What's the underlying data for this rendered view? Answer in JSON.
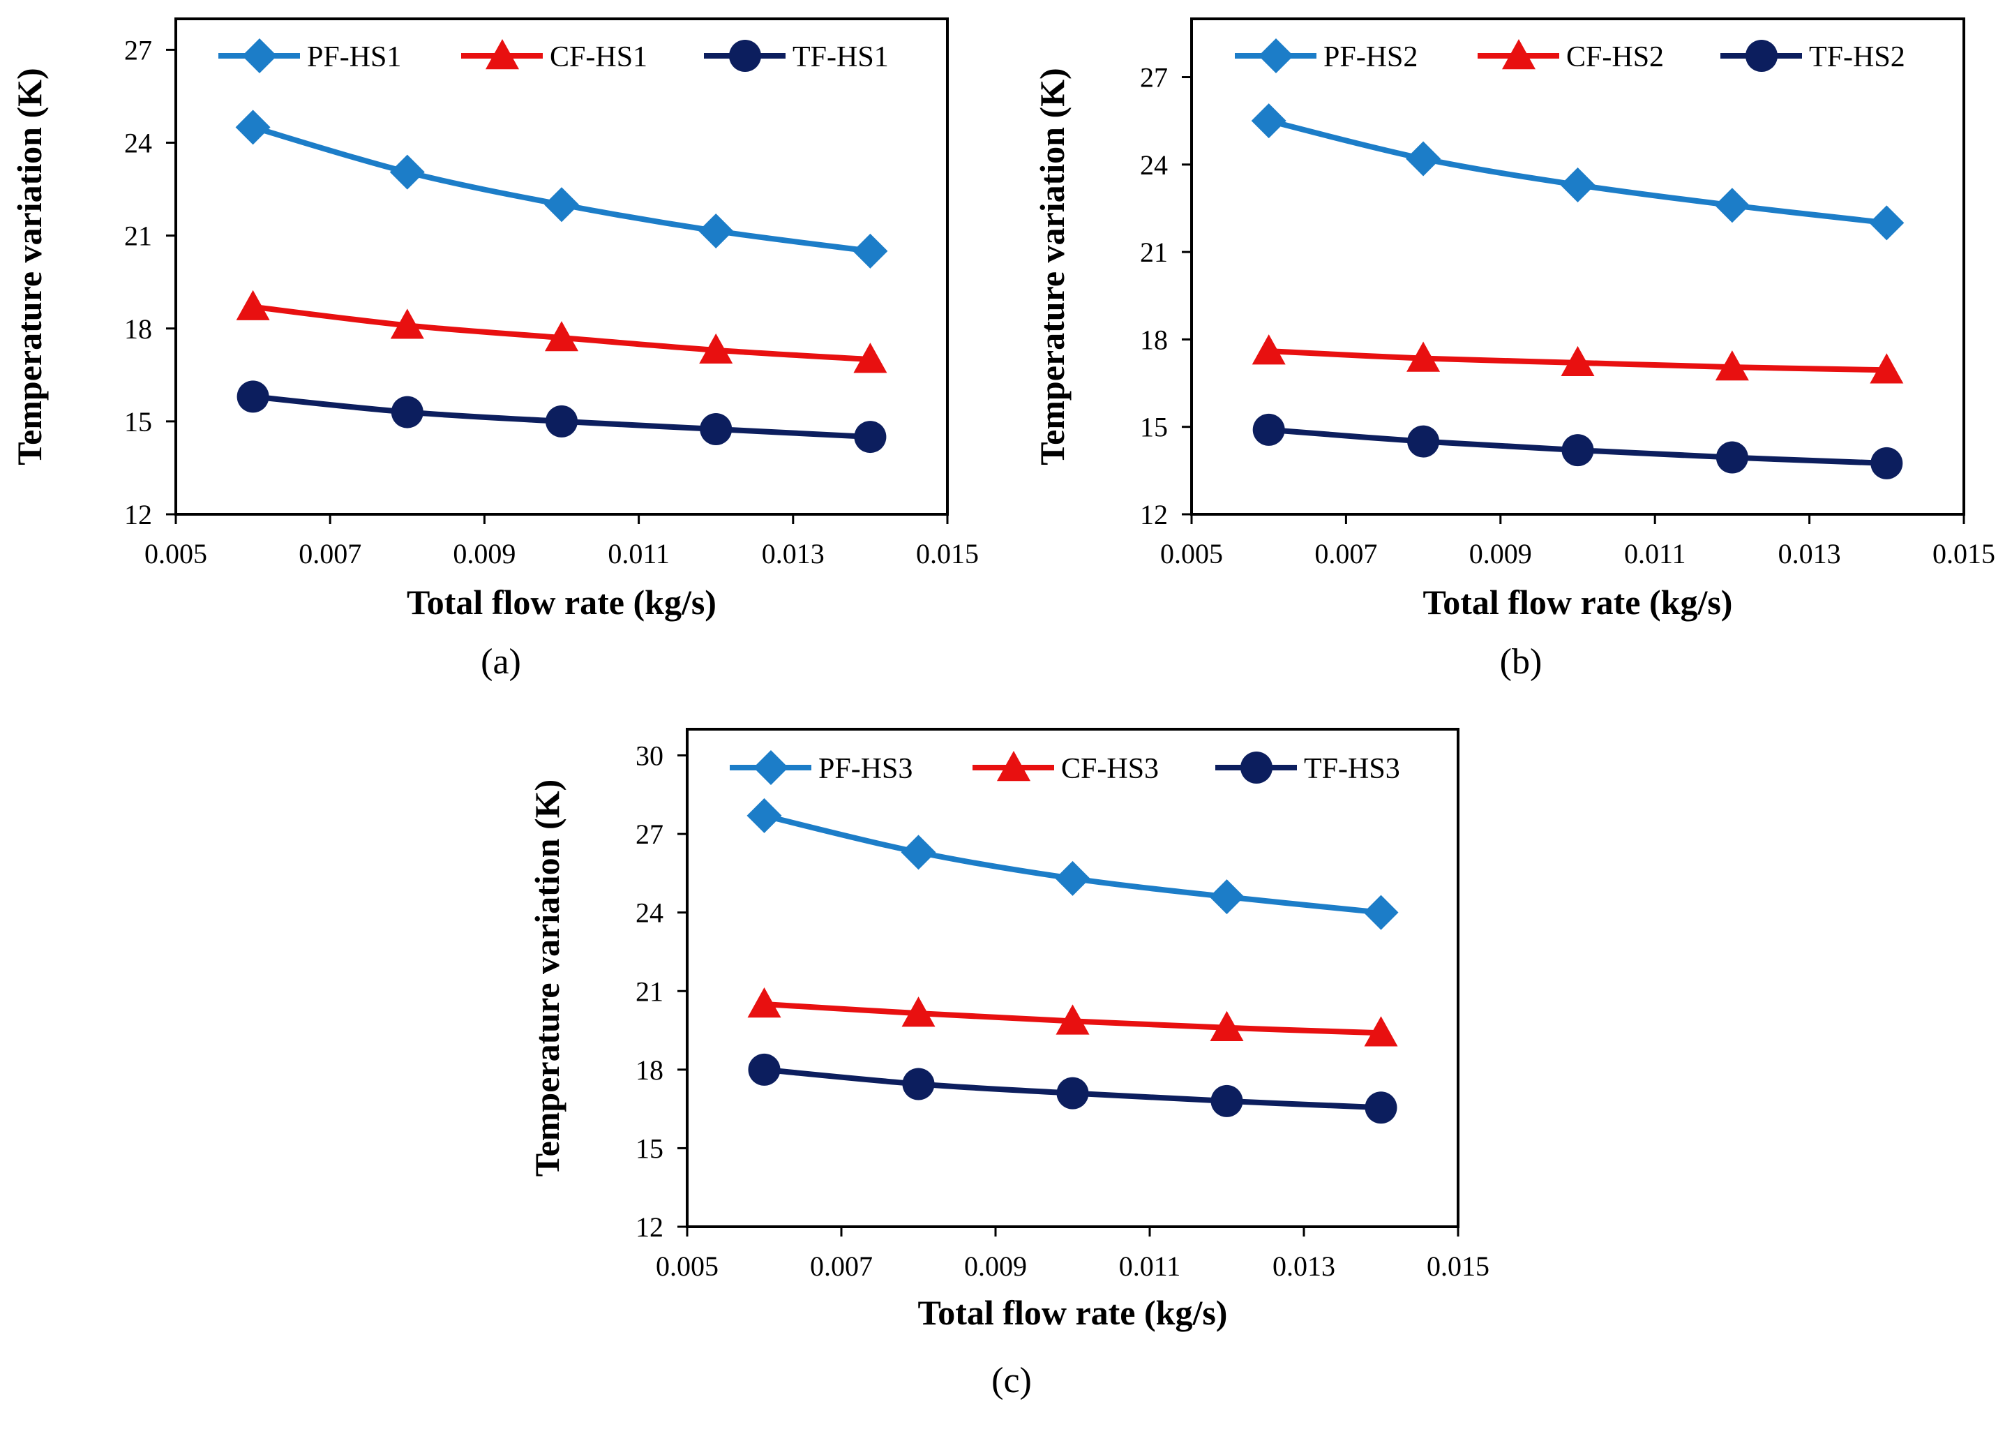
{
  "series_styles": [
    {
      "color": "#1C7DC8",
      "marker": "diamond"
    },
    {
      "color": "#E81010",
      "marker": "triangle"
    },
    {
      "color": "#0C1E5E",
      "marker": "circle"
    }
  ],
  "chart_data": [
    {
      "type": "line",
      "caption": "(a)",
      "xlabel": "Total flow rate (kg/s)",
      "ylabel": "Temperature  variation (K)",
      "xlim": [
        0.005,
        0.015
      ],
      "ylim": [
        12,
        28
      ],
      "x_ticks": [
        "0.005",
        "0.007",
        "0.009",
        "0.011",
        "0.013",
        "0.015"
      ],
      "y_ticks": [
        "12",
        "15",
        "18",
        "21",
        "24",
        "27"
      ],
      "x": [
        0.006,
        0.008,
        0.01,
        0.012,
        0.014
      ],
      "series": [
        {
          "name": "PF-HS1",
          "values": [
            24.5,
            23.05,
            22.0,
            21.15,
            20.5
          ]
        },
        {
          "name": "CF-HS1",
          "values": [
            18.7,
            18.1,
            17.7,
            17.3,
            17.0
          ]
        },
        {
          "name": "TF-HS1",
          "values": [
            15.8,
            15.3,
            15.0,
            14.75,
            14.5
          ]
        }
      ]
    },
    {
      "type": "line",
      "caption": "(b)",
      "xlabel": "Total flow rate (kg/s)",
      "ylabel": "Temperature  variation (K)",
      "xlim": [
        0.005,
        0.015
      ],
      "ylim": [
        12,
        29
      ],
      "x_ticks": [
        "0.005",
        "0.007",
        "0.009",
        "0.011",
        "0.013",
        "0.015"
      ],
      "y_ticks": [
        "12",
        "15",
        "18",
        "21",
        "24",
        "27"
      ],
      "x": [
        0.006,
        0.008,
        0.01,
        0.012,
        0.014
      ],
      "series": [
        {
          "name": "PF-HS2",
          "values": [
            25.5,
            24.2,
            23.3,
            22.6,
            22.0
          ]
        },
        {
          "name": "CF-HS2",
          "values": [
            17.6,
            17.35,
            17.2,
            17.05,
            16.95
          ]
        },
        {
          "name": "TF-HS2",
          "values": [
            14.9,
            14.5,
            14.2,
            13.95,
            13.75
          ]
        }
      ]
    },
    {
      "type": "line",
      "caption": "(c)",
      "xlabel": "Total flow rate (kg/s)",
      "ylabel": "Temperature  variation (K)",
      "xlim": [
        0.005,
        0.015
      ],
      "ylim": [
        12,
        31
      ],
      "x_ticks": [
        "0.005",
        "0.007",
        "0.009",
        "0.011",
        "0.013",
        "0.015"
      ],
      "y_ticks": [
        "12",
        "15",
        "18",
        "21",
        "24",
        "27",
        "30"
      ],
      "x": [
        0.006,
        0.008,
        0.01,
        0.012,
        0.014
      ],
      "series": [
        {
          "name": "PF-HS3",
          "values": [
            27.7,
            26.3,
            25.3,
            24.6,
            24.0
          ]
        },
        {
          "name": "CF-HS3",
          "values": [
            20.5,
            20.15,
            19.85,
            19.6,
            19.4
          ]
        },
        {
          "name": "TF-HS3",
          "values": [
            18.0,
            17.45,
            17.1,
            16.8,
            16.55
          ]
        }
      ]
    }
  ]
}
